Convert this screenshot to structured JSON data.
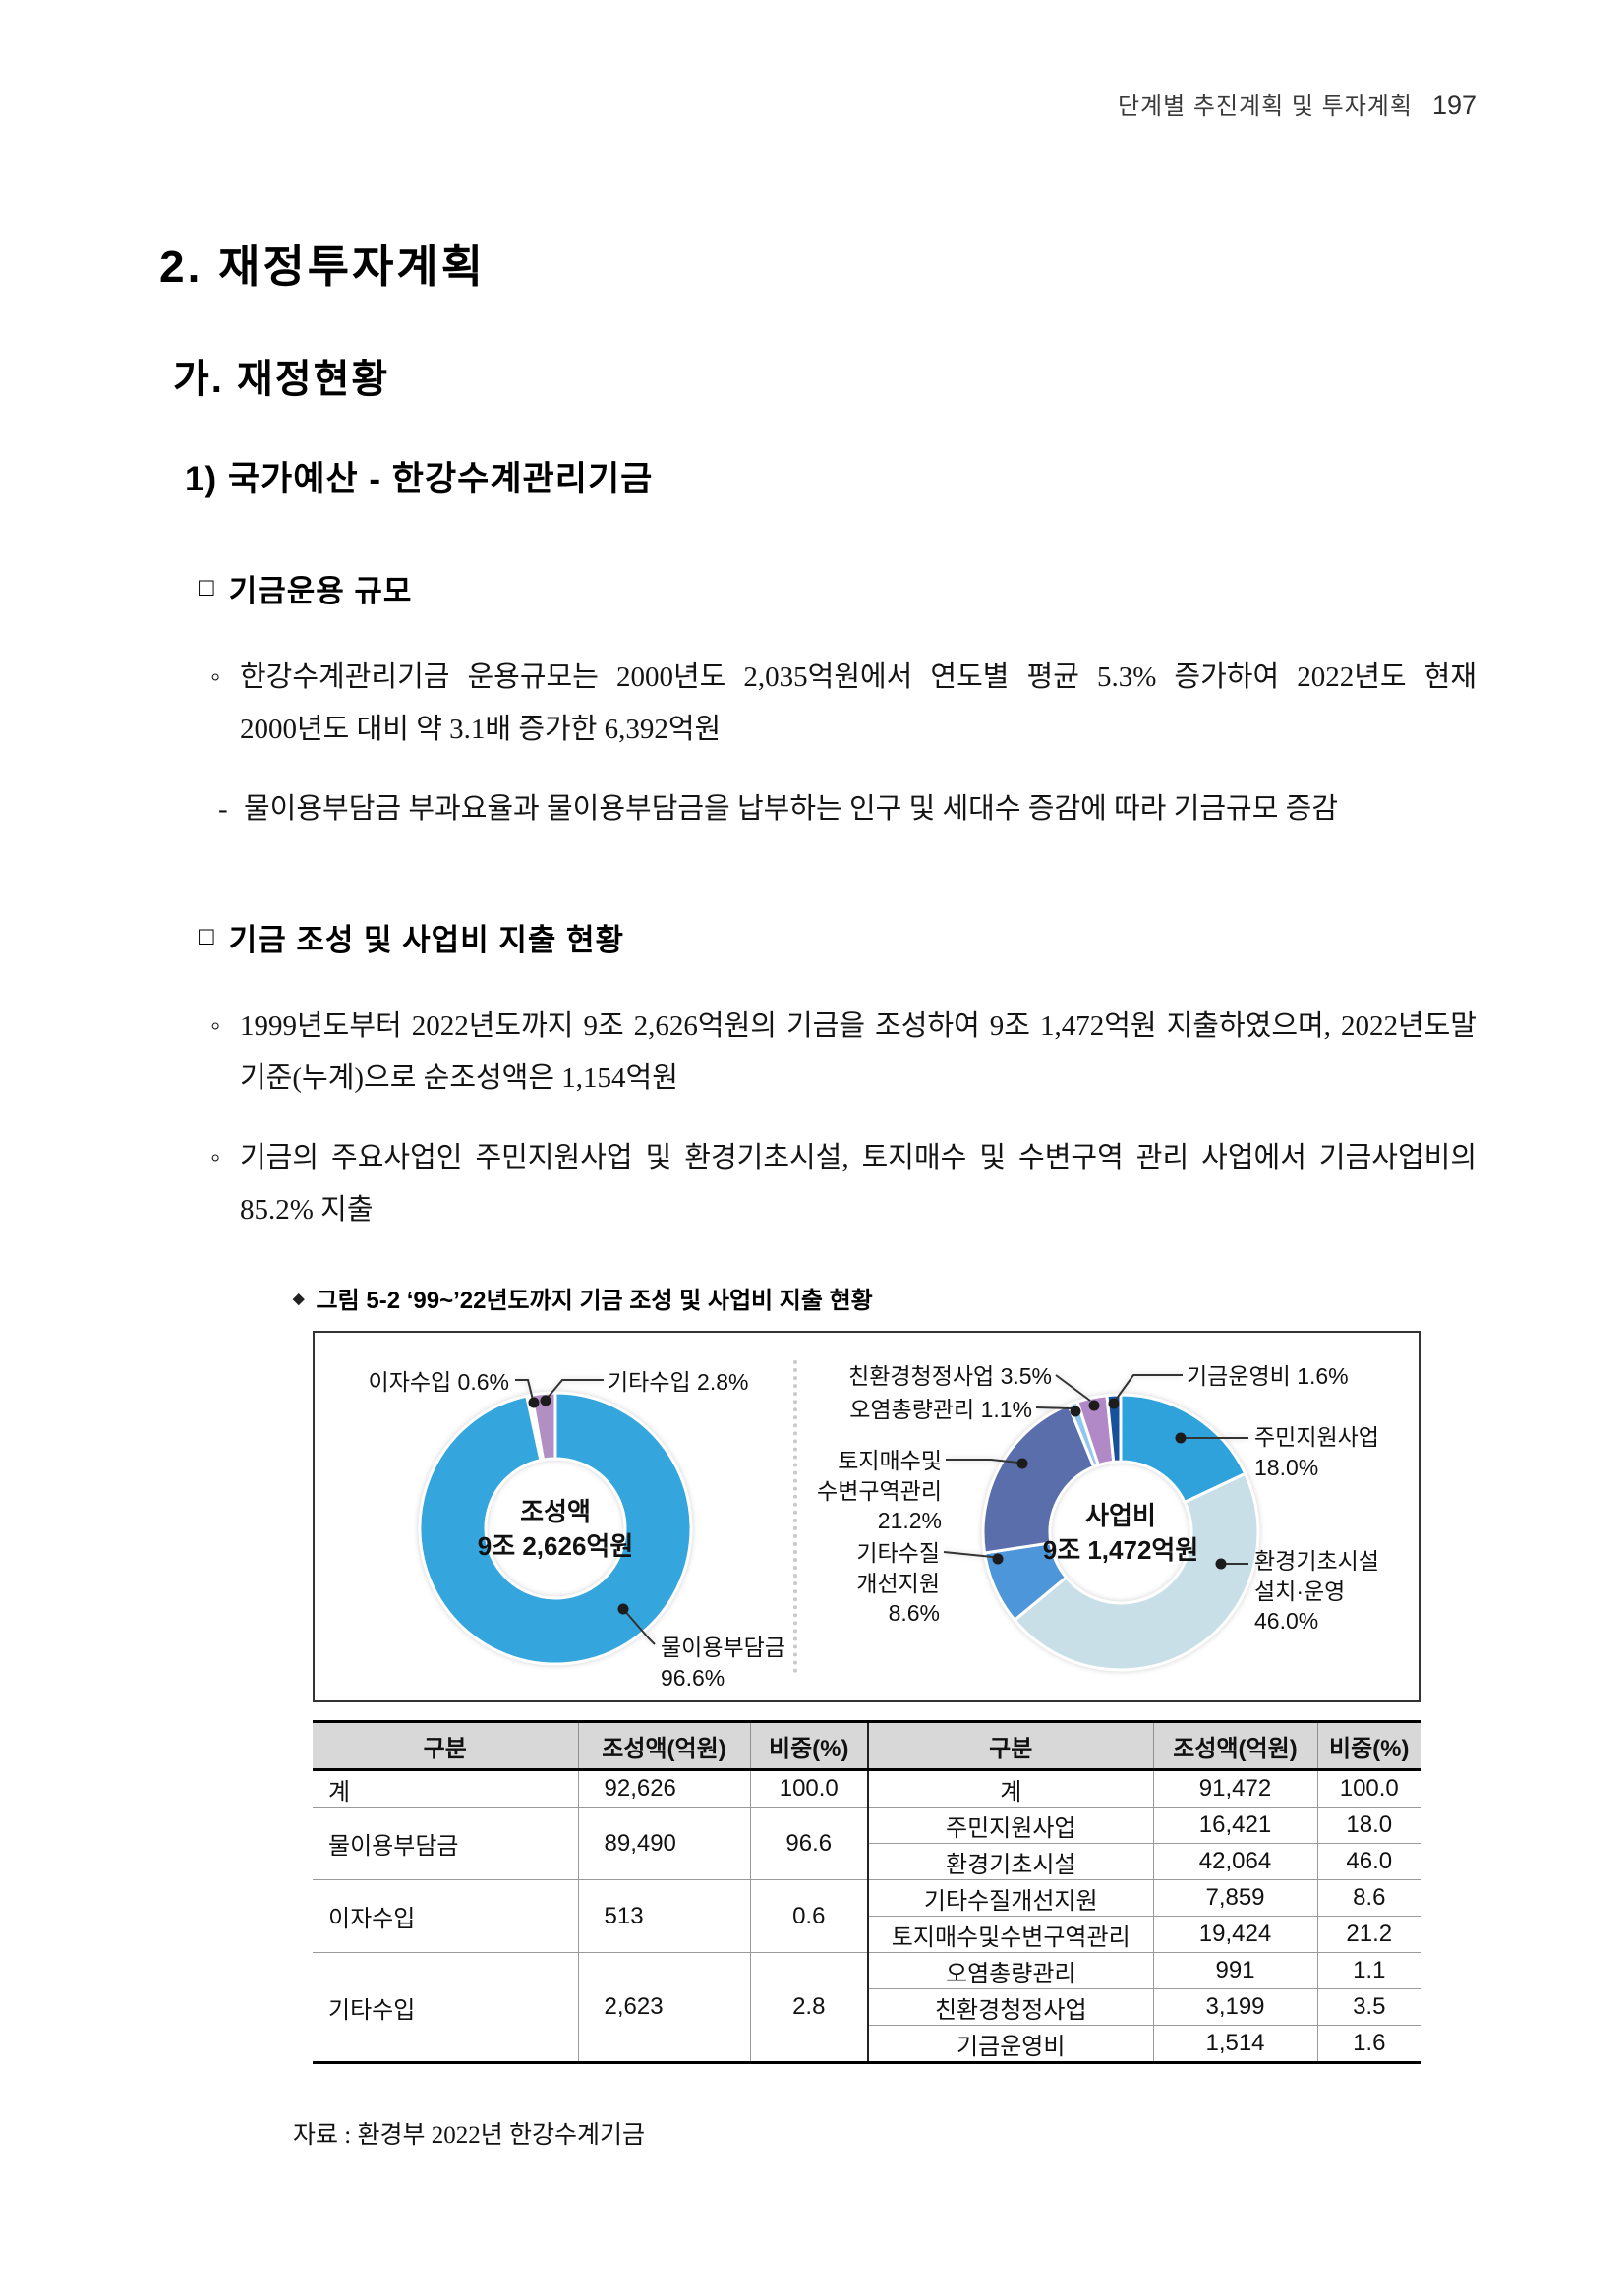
{
  "header": {
    "running_title": "단계별 추진계획 및 투자계획",
    "page_number": "197"
  },
  "titles": {
    "h1": "2. 재정투자계획",
    "h2": "가. 재정현황",
    "h3": "1) 국가예산 - 한강수계관리기금"
  },
  "sections": [
    {
      "bullet": "□",
      "title": "기금운용 규모",
      "items": [
        {
          "marker": "◦",
          "text": "한강수계관리기금 운용규모는 2000년도 2,035억원에서 연도별 평균 5.3% 증가하여 2022년도 현재 2000년도 대비 약 3.1배 증가한 6,392억원"
        },
        {
          "marker": "-",
          "text": "물이용부담금 부과요율과 물이용부담금을 납부하는 인구 및 세대수 증감에 따라 기금규모 증감"
        }
      ]
    },
    {
      "bullet": "□",
      "title": "기금 조성 및 사업비 지출 현황",
      "items": [
        {
          "marker": "◦",
          "text": "1999년도부터 2022년도까지 9조 2,626억원의 기금을 조성하여 9조 1,472억원 지출하였으며, 2022년도말 기준(누계)으로 순조성액은 1,154억원"
        },
        {
          "marker": "◦",
          "text": "기금의 주요사업인 주민지원사업 및 환경기초시설, 토지매수 및 수변구역 관리 사업에서 기금사업비의 85.2% 지출"
        }
      ]
    }
  ],
  "figure": {
    "caption_marker": "◆",
    "caption": "그림 5-2 ‘99~’22년도까지 기금 조성 및 사업비 지출 현황"
  },
  "chart_data": [
    {
      "type": "pie",
      "variant": "donut",
      "title": "기금 조성액 구성",
      "center_lines": [
        "조성액",
        "9조 2,626억원"
      ],
      "unit": "%",
      "slices": [
        {
          "label": "물이용부담금",
          "value": 96.6,
          "color": "#35A5DE",
          "callout_lines": [
            "물이용부담금",
            "96.6%"
          ]
        },
        {
          "label": "이자수입",
          "value": 0.6,
          "color": "#FFFFFF",
          "callout_lines": [
            "이자수입 0.6%"
          ]
        },
        {
          "label": "기타수입",
          "value": 2.8,
          "color": "#B18FC5",
          "callout_lines": [
            "기타수입 2.8%"
          ]
        }
      ]
    },
    {
      "type": "pie",
      "variant": "donut",
      "title": "기금 사업비 구성",
      "center_lines": [
        "사업비",
        "9조 1,472억원"
      ],
      "unit": "%",
      "slices": [
        {
          "label": "주민지원사업",
          "value": 18.0,
          "color": "#2FA2DB",
          "callout_lines": [
            "주민지원사업",
            "18.0%"
          ]
        },
        {
          "label": "환경기초시설 설치·운영",
          "value": 46.0,
          "color": "#C9DFE8",
          "callout_lines": [
            "환경기초시설",
            "설치·운영",
            "46.0%"
          ]
        },
        {
          "label": "기타수질개선지원",
          "value": 8.6,
          "color": "#4E96DA",
          "callout_lines": [
            "기타수질",
            "개선지원",
            "8.6%"
          ]
        },
        {
          "label": "토지매수및수변구역관리",
          "value": 21.2,
          "color": "#5A6EAC",
          "callout_lines": [
            "토지매수및",
            "수변구역관리",
            "21.2%"
          ]
        },
        {
          "label": "오염총량관리",
          "value": 1.1,
          "color": "#92C6EC",
          "callout_lines": [
            "오염총량관리 1.1%"
          ]
        },
        {
          "label": "친환경청정사업",
          "value": 3.5,
          "color": "#B289C7",
          "callout_lines": [
            "친환경청정사업 3.5%"
          ]
        },
        {
          "label": "기금운영비",
          "value": 1.6,
          "color": "#17509B",
          "callout_lines": [
            "기금운영비 1.6%"
          ]
        }
      ]
    }
  ],
  "table": {
    "headers": [
      "구분",
      "조성액(억원)",
      "비중(%)",
      "구분",
      "조성액(억원)",
      "비중(%)"
    ],
    "left_rows": [
      {
        "label": "계",
        "value": "92,626",
        "pct": "100.0",
        "span": 1
      },
      {
        "label": "물이용부담금",
        "value": "89,490",
        "pct": "96.6",
        "span": 2
      },
      {
        "label": "이자수입",
        "value": "513",
        "pct": "0.6",
        "span": 2
      },
      {
        "label": "기타수입",
        "value": "2,623",
        "pct": "2.8",
        "span": 3
      }
    ],
    "right_rows": [
      {
        "label": "계",
        "value": "91,472",
        "pct": "100.0"
      },
      {
        "label": "주민지원사업",
        "value": "16,421",
        "pct": "18.0"
      },
      {
        "label": "환경기초시설",
        "value": "42,064",
        "pct": "46.0"
      },
      {
        "label": "기타수질개선지원",
        "value": "7,859",
        "pct": "8.6"
      },
      {
        "label": "토지매수및수변구역관리",
        "value": "19,424",
        "pct": "21.2"
      },
      {
        "label": "오염총량관리",
        "value": "991",
        "pct": "1.1"
      },
      {
        "label": "친환경청정사업",
        "value": "3,199",
        "pct": "3.5"
      },
      {
        "label": "기금운영비",
        "value": "1,514",
        "pct": "1.6"
      }
    ]
  },
  "source": "자료 : 환경부 2022년 한강수계기금"
}
